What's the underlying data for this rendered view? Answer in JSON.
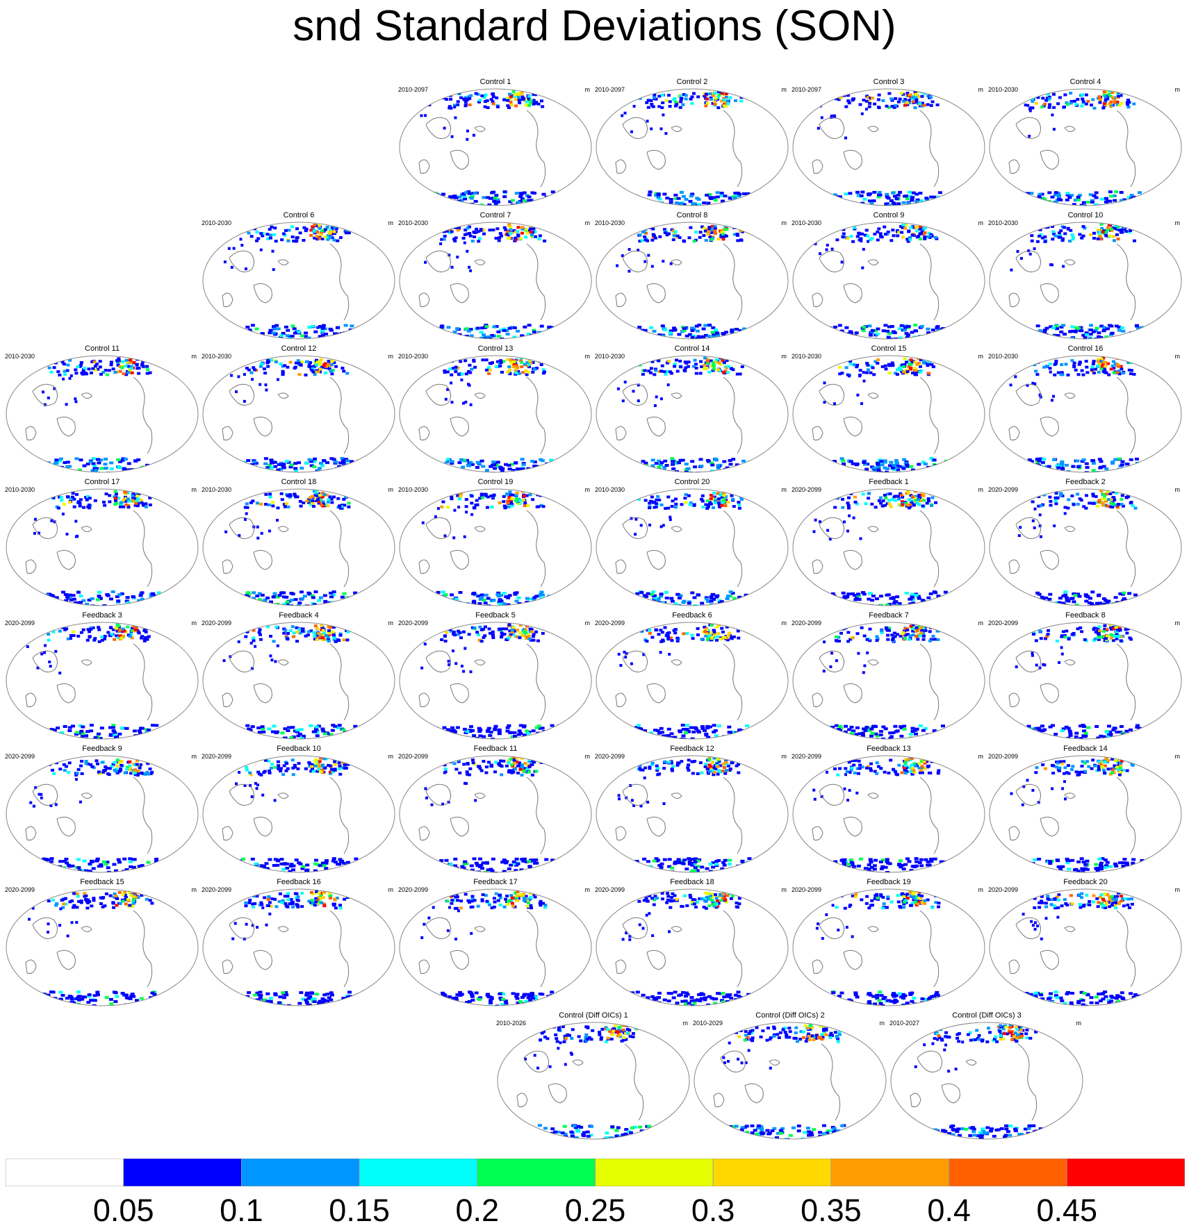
{
  "title": "snd Standard Deviations (SON)",
  "units": "m",
  "colorbar": {
    "colors": [
      "#ffffff",
      "#0000ff",
      "#0096ff",
      "#00fff8",
      "#00ff50",
      "#e6ff00",
      "#ffd800",
      "#ff9c00",
      "#ff6000",
      "#ff0000"
    ],
    "labels": [
      "0.05",
      "0.1",
      "0.15",
      "0.2",
      "0.25",
      "0.3",
      "0.35",
      "0.4",
      "0.45"
    ]
  },
  "chart_data": {
    "type": "heatmap",
    "title": "snd Standard Deviations (SON)",
    "units": "m",
    "levels": [
      0.05,
      0.1,
      0.15,
      0.2,
      0.25,
      0.3,
      0.35,
      0.4,
      0.45
    ],
    "panels": [
      {
        "title": "Control 1",
        "years": "2010-2097"
      },
      {
        "title": "Control 2",
        "years": "2010-2097"
      },
      {
        "title": "Control 3",
        "years": "2010-2097"
      },
      {
        "title": "Control 4",
        "years": "2010-2030"
      },
      {
        "title": "Control 6",
        "years": "2010-2030"
      },
      {
        "title": "Control 7",
        "years": "2010-2030"
      },
      {
        "title": "Control 8",
        "years": "2010-2030"
      },
      {
        "title": "Control 9",
        "years": "2010-2030"
      },
      {
        "title": "Control 10",
        "years": "2010-2030"
      },
      {
        "title": "Control 11",
        "years": "2010-2030"
      },
      {
        "title": "Control 12",
        "years": "2010-2030"
      },
      {
        "title": "Control 13",
        "years": "2010-2030"
      },
      {
        "title": "Control 14",
        "years": "2010-2030"
      },
      {
        "title": "Control 15",
        "years": "2010-2030"
      },
      {
        "title": "Control 16",
        "years": "2010-2030"
      },
      {
        "title": "Control 17",
        "years": "2010-2030"
      },
      {
        "title": "Control 18",
        "years": "2010-2030"
      },
      {
        "title": "Control 19",
        "years": "2010-2030"
      },
      {
        "title": "Control 20",
        "years": "2010-2030"
      },
      {
        "title": "Feedback 1",
        "years": "2020-2099"
      },
      {
        "title": "Feedback 2",
        "years": "2020-2099"
      },
      {
        "title": "Feedback 3",
        "years": "2020-2099"
      },
      {
        "title": "Feedback 4",
        "years": "2020-2099"
      },
      {
        "title": "Feedback 5",
        "years": "2020-2099"
      },
      {
        "title": "Feedback 6",
        "years": "2020-2099"
      },
      {
        "title": "Feedback 7",
        "years": "2020-2099"
      },
      {
        "title": "Feedback 8",
        "years": "2020-2099"
      },
      {
        "title": "Feedback 9",
        "years": "2020-2099"
      },
      {
        "title": "Feedback 10",
        "years": "2020-2099"
      },
      {
        "title": "Feedback 11",
        "years": "2020-2099"
      },
      {
        "title": "Feedback 12",
        "years": "2020-2099"
      },
      {
        "title": "Feedback 13",
        "years": "2020-2099"
      },
      {
        "title": "Feedback 14",
        "years": "2020-2099"
      },
      {
        "title": "Feedback 15",
        "years": "2020-2099"
      },
      {
        "title": "Feedback 16",
        "years": "2020-2099"
      },
      {
        "title": "Feedback 17",
        "years": "2020-2099"
      },
      {
        "title": "Feedback 18",
        "years": "2020-2099"
      },
      {
        "title": "Feedback 19",
        "years": "2020-2099"
      },
      {
        "title": "Feedback 20",
        "years": "2020-2099"
      },
      {
        "title": "Control (Diff OICs) 1",
        "years": "2010-2026"
      },
      {
        "title": "Control (Diff OICs) 2",
        "years": "2010-2029"
      },
      {
        "title": "Control (Diff OICs) 3",
        "years": "2010-2027"
      }
    ]
  }
}
